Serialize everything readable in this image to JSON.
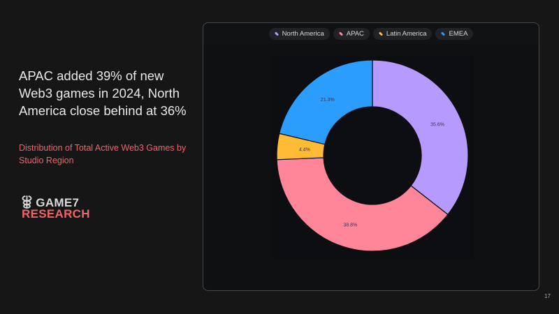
{
  "slide": {
    "headline": "APAC added 39% of new Web3 games in 2024, North America close behind at 36%",
    "subtitle": "Distribution of Total Active Web3 Games by Studio Region",
    "logo": {
      "line1": "GAME7",
      "line2": "RESEARCH"
    },
    "page_number": "17"
  },
  "chart_data": {
    "type": "pie",
    "donut": true,
    "legend_position": "top",
    "categories": [
      "North America",
      "APAC",
      "Latin America",
      "EMEA"
    ],
    "values": [
      35.6,
      38.8,
      4.4,
      21.3
    ],
    "labels": [
      "35.6%",
      "38.8%",
      "4.4%",
      "21.3%"
    ],
    "colors": [
      "#b59bff",
      "#ff8599",
      "#ffbb33",
      "#2a9dff"
    ]
  }
}
